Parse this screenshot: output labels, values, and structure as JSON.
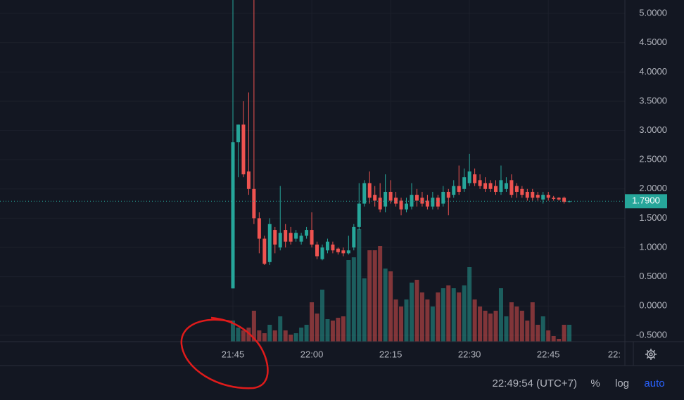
{
  "chart_data": {
    "type": "candlestick",
    "categories": [
      "21:45",
      null,
      null,
      null,
      null,
      null,
      null,
      null,
      null,
      null,
      null,
      null,
      null,
      null,
      null,
      "22:00",
      null,
      null,
      null,
      null,
      null,
      null,
      null,
      null,
      null,
      null,
      null,
      null,
      null,
      null,
      "22:15",
      null,
      null,
      null,
      null,
      null,
      null,
      null,
      null,
      null,
      null,
      null,
      null,
      null,
      null,
      "22:30",
      null,
      null,
      null,
      null,
      null,
      null,
      null,
      null,
      null,
      null,
      null,
      null,
      null,
      null,
      "22:45",
      null,
      null,
      null,
      null
    ],
    "open": [
      0.3,
      2.8,
      3.1,
      2.3,
      2.0,
      1.5,
      1.15,
      0.75,
      1.3,
      1.0,
      1.3,
      1.25,
      1.15,
      1.1,
      1.2,
      1.3,
      1.05,
      0.8,
      0.95,
      1.05,
      0.98,
      0.95,
      0.9,
      1.0,
      1.35,
      1.75,
      2.1,
      1.9,
      1.85,
      1.7,
      1.95,
      1.85,
      1.8,
      1.65,
      1.7,
      1.9,
      1.85,
      1.8,
      1.7,
      1.85,
      1.75,
      1.95,
      1.9,
      2.05,
      2.0,
      2.1,
      2.25,
      2.15,
      2.1,
      2.1,
      2.05,
      1.95,
      2.0,
      2.15,
      2.05,
      2.0,
      1.95,
      1.95,
      1.9,
      1.82,
      1.9,
      1.85,
      1.85,
      1.85,
      1.78
    ],
    "high": [
      5.3,
      3.1,
      3.5,
      3.65,
      5.3,
      1.6,
      1.2,
      1.5,
      1.35,
      2.05,
      1.4,
      1.35,
      1.3,
      1.25,
      1.35,
      1.6,
      1.1,
      1.05,
      1.15,
      1.1,
      1.0,
      1.0,
      1.2,
      1.4,
      2.1,
      2.15,
      2.3,
      2.05,
      2.1,
      2.25,
      2.15,
      1.95,
      1.85,
      1.85,
      2.1,
      2.0,
      1.95,
      1.9,
      1.95,
      1.9,
      2.05,
      2.0,
      2.15,
      2.4,
      2.35,
      2.6,
      2.35,
      2.25,
      2.2,
      2.15,
      2.15,
      2.4,
      2.2,
      2.25,
      2.1,
      2.05,
      2.0,
      2.0,
      1.95,
      1.95,
      1.95,
      1.88,
      1.86,
      1.87,
      1.8
    ],
    "low": [
      0.3,
      2.2,
      2.2,
      1.9,
      1.4,
      0.9,
      0.7,
      0.7,
      0.9,
      0.95,
      1.0,
      1.05,
      1.1,
      1.05,
      1.15,
      1.0,
      0.8,
      0.78,
      0.9,
      0.9,
      0.88,
      0.85,
      0.88,
      0.95,
      1.3,
      1.7,
      1.75,
      1.7,
      1.6,
      1.6,
      1.75,
      1.7,
      1.55,
      1.6,
      1.65,
      1.7,
      1.7,
      1.65,
      1.65,
      1.65,
      1.7,
      1.55,
      1.85,
      1.9,
      1.95,
      2.05,
      2.05,
      2.0,
      1.95,
      1.95,
      1.9,
      1.9,
      1.95,
      1.85,
      1.85,
      1.85,
      1.8,
      1.8,
      1.8,
      1.75,
      1.8,
      1.8,
      1.8,
      1.75,
      1.77
    ],
    "close": [
      2.8,
      3.1,
      2.25,
      2.0,
      1.5,
      1.15,
      0.72,
      1.4,
      1.05,
      1.25,
      1.1,
      1.1,
      1.25,
      1.2,
      1.3,
      1.05,
      0.85,
      1.0,
      1.1,
      0.95,
      0.92,
      0.9,
      0.95,
      1.35,
      1.75,
      2.1,
      1.85,
      1.8,
      1.65,
      1.95,
      1.8,
      1.75,
      1.65,
      1.75,
      1.9,
      1.8,
      1.75,
      1.7,
      1.85,
      1.7,
      1.95,
      1.85,
      2.05,
      1.95,
      2.2,
      2.3,
      2.1,
      2.05,
      2.0,
      2.0,
      1.95,
      2.15,
      2.1,
      1.9,
      1.95,
      1.9,
      1.85,
      1.85,
      1.85,
      1.9,
      1.85,
      1.83,
      1.82,
      1.78,
      1.79
    ],
    "volume": [
      15,
      10,
      8,
      10,
      22,
      8,
      6,
      12,
      8,
      18,
      8,
      5,
      6,
      10,
      12,
      28,
      20,
      37,
      16,
      15,
      17,
      18,
      58,
      60,
      80,
      45,
      65,
      65,
      68,
      52,
      50,
      30,
      25,
      30,
      42,
      44,
      35,
      30,
      25,
      35,
      38,
      40,
      38,
      35,
      40,
      53,
      30,
      25,
      22,
      20,
      22,
      38,
      18,
      28,
      25,
      22,
      15,
      28,
      12,
      18,
      8,
      4,
      2,
      12,
      12
    ],
    "vlim": [
      0,
      100
    ],
    "up_color": "#26a69a",
    "down_color": "#ef5350",
    "ylim": [
      -0.61,
      5.23
    ],
    "yticks": [
      {
        "value": 5.0,
        "label": "5.0000"
      },
      {
        "value": 4.5,
        "label": "4.5000"
      },
      {
        "value": 4.0,
        "label": "4.0000"
      },
      {
        "value": 3.5,
        "label": "3.5000"
      },
      {
        "value": 3.0,
        "label": "3.0000"
      },
      {
        "value": 2.5,
        "label": "2.5000"
      },
      {
        "value": 2.0,
        "label": "2.0000"
      },
      {
        "value": 1.5,
        "label": "1.5000"
      },
      {
        "value": 1.0,
        "label": "1.0000"
      },
      {
        "value": 0.5,
        "label": "0.5000"
      },
      {
        "value": 0.0,
        "label": "0.0000"
      },
      {
        "value": -0.5,
        "label": "-0.5000"
      }
    ],
    "grid": true,
    "last_price": {
      "value": 1.79,
      "label": "1.7900"
    }
  },
  "ui": {
    "clipped_time_label": "22:",
    "clock": "22:49:54 (UTC+7)",
    "buttons": [
      "%",
      "log",
      "auto"
    ]
  }
}
